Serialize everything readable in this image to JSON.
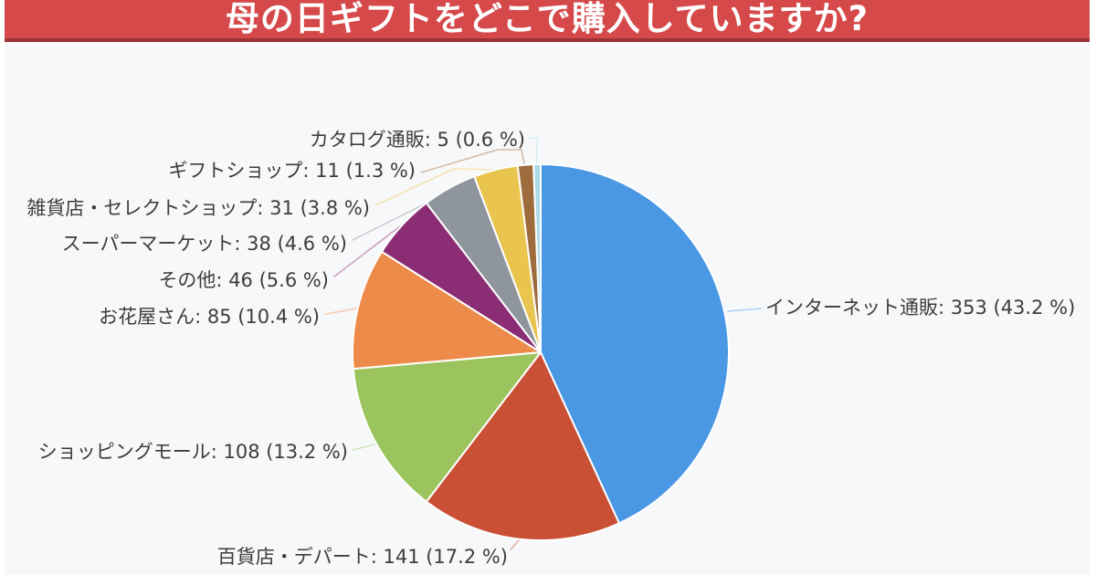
{
  "header": {
    "title": "母の日ギフトをどこで購入していますか?",
    "banner_bg": "#d6494a",
    "banner_underline": "#9c3336",
    "title_color": "#ffffff"
  },
  "chart_area_bg": "#f7f8fa",
  "chart_data": {
    "type": "pie",
    "title": "母の日ギフトをどこで購入していますか?",
    "legend_position": "none",
    "start_angle": "12-o'clock",
    "direction": "clockwise",
    "label_style": "outside with leader lines, format 'name: count (percent %)'",
    "series": [
      {
        "label": "インターネット通販",
        "value": 353,
        "percent": 43.2,
        "color": "#4a97e4",
        "display": "インターネット通販: 353 (43.2 %)"
      },
      {
        "label": "百貨店・デパート",
        "value": 141,
        "percent": 17.2,
        "color": "#c94f35",
        "display": "百貨店・デパート: 141 (17.2 %)"
      },
      {
        "label": "ショッピングモール",
        "value": 108,
        "percent": 13.2,
        "color": "#9cc45e",
        "display": "ショッピングモール: 108 (13.2 %)"
      },
      {
        "label": "お花屋さん",
        "value": 85,
        "percent": 10.4,
        "color": "#ed8c4a",
        "display": "お花屋さん: 85 (10.4 %)"
      },
      {
        "label": "その他",
        "value": 46,
        "percent": 5.6,
        "color": "#8b2d74",
        "display": "その他: 46 (5.6 %)"
      },
      {
        "label": "スーパーマーケット",
        "value": 38,
        "percent": 4.6,
        "color": "#8e959d",
        "display": "スーパーマーケット: 38 (4.6 %)"
      },
      {
        "label": "雑貨店・セレクトショップ",
        "value": 31,
        "percent": 3.8,
        "color": "#e9c44f",
        "display": "雑貨店・セレクトショップ: 31 (3.8 %)"
      },
      {
        "label": "ギフトショップ",
        "value": 11,
        "percent": 1.3,
        "color": "#9e6b3d",
        "display": "ギフトショップ: 11 (1.3 %)"
      },
      {
        "label": "カタログ通販",
        "value": 5,
        "percent": 0.6,
        "color": "#abdbe6",
        "display": "カタログ通販: 5 (0.6 %)"
      }
    ]
  }
}
